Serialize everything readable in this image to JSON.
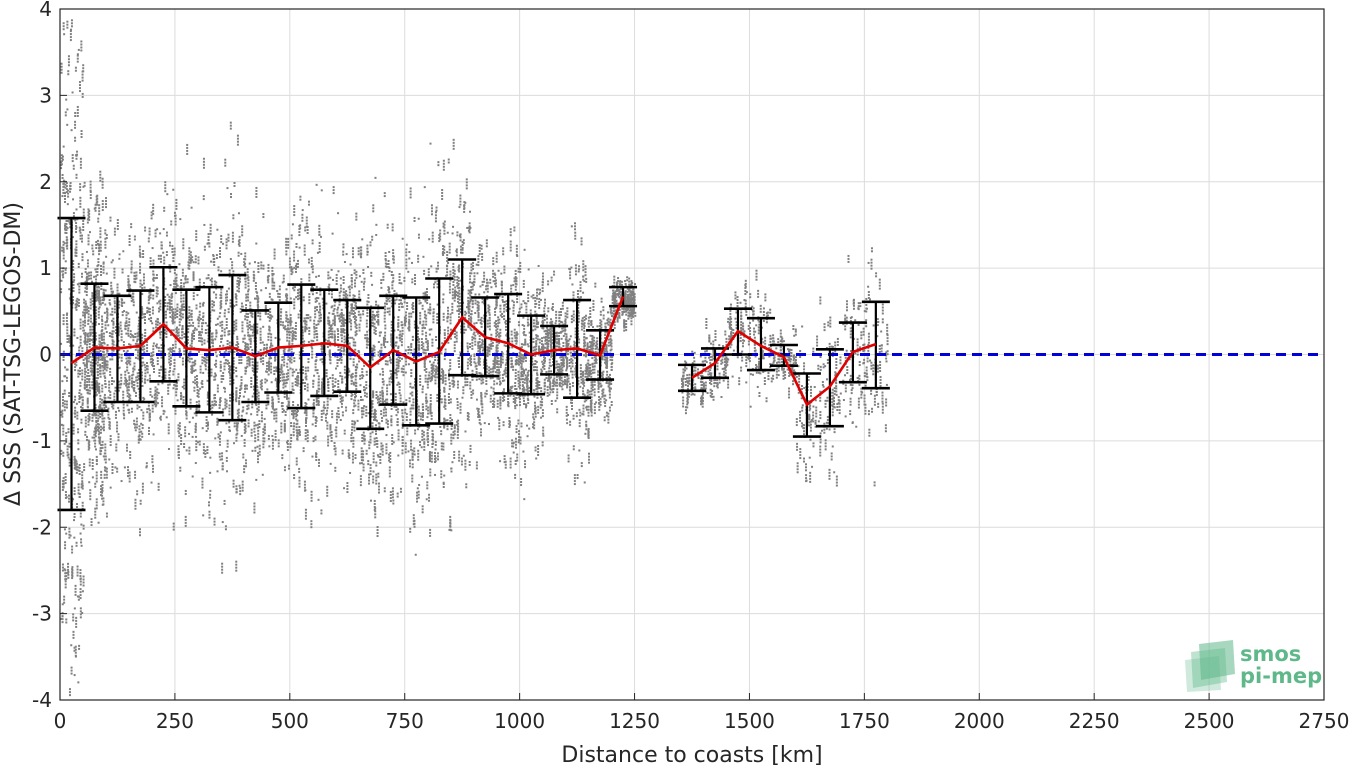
{
  "chart_data": {
    "type": "scatter",
    "xlabel": "Distance to coasts [km]",
    "ylabel": "Δ SSS (SAT-TSG-LEGOS-DM)",
    "xlim": [
      0,
      2750
    ],
    "ylim": [
      -4,
      4
    ],
    "xticks": [
      0,
      250,
      500,
      750,
      1000,
      1250,
      1500,
      1750,
      2000,
      2250,
      2500,
      2750
    ],
    "yticks": [
      -4,
      -3,
      -2,
      -1,
      0,
      1,
      2,
      3,
      4
    ],
    "grid": true,
    "zero_line": {
      "y": 0,
      "color": "#0000dd",
      "style": "dashed"
    },
    "mean_series": {
      "color": "#e00000",
      "segments": [
        [
          [
            25,
            -0.1
          ],
          [
            75,
            0.08
          ],
          [
            125,
            0.07
          ],
          [
            175,
            0.1
          ],
          [
            225,
            0.35
          ],
          [
            275,
            0.07
          ],
          [
            325,
            0.05
          ],
          [
            375,
            0.08
          ],
          [
            425,
            -0.02
          ],
          [
            475,
            0.08
          ],
          [
            525,
            0.1
          ],
          [
            575,
            0.13
          ],
          [
            625,
            0.1
          ],
          [
            675,
            -0.15
          ],
          [
            725,
            0.05
          ],
          [
            775,
            -0.08
          ],
          [
            825,
            0.03
          ],
          [
            875,
            0.43
          ],
          [
            925,
            0.2
          ],
          [
            975,
            0.13
          ],
          [
            1025,
            0.0
          ],
          [
            1075,
            0.05
          ],
          [
            1125,
            0.07
          ],
          [
            1175,
            -0.01
          ],
          [
            1225,
            0.67
          ]
        ],
        [
          [
            1375,
            -0.27
          ],
          [
            1425,
            -0.1
          ],
          [
            1475,
            0.27
          ],
          [
            1525,
            0.1
          ],
          [
            1575,
            -0.03
          ],
          [
            1625,
            -0.58
          ],
          [
            1675,
            -0.37
          ],
          [
            1725,
            0.03
          ],
          [
            1775,
            0.12
          ]
        ]
      ]
    },
    "error_bars": [
      {
        "x": 25,
        "low": -1.8,
        "high": 1.58
      },
      {
        "x": 75,
        "low": -0.65,
        "high": 0.82
      },
      {
        "x": 125,
        "low": -0.55,
        "high": 0.68
      },
      {
        "x": 175,
        "low": -0.55,
        "high": 0.74
      },
      {
        "x": 225,
        "low": -0.31,
        "high": 1.01
      },
      {
        "x": 275,
        "low": -0.6,
        "high": 0.75
      },
      {
        "x": 325,
        "low": -0.67,
        "high": 0.78
      },
      {
        "x": 375,
        "low": -0.76,
        "high": 0.92
      },
      {
        "x": 425,
        "low": -0.55,
        "high": 0.51
      },
      {
        "x": 475,
        "low": -0.44,
        "high": 0.6
      },
      {
        "x": 525,
        "low": -0.62,
        "high": 0.81
      },
      {
        "x": 575,
        "low": -0.48,
        "high": 0.75
      },
      {
        "x": 625,
        "low": -0.43,
        "high": 0.63
      },
      {
        "x": 675,
        "low": -0.86,
        "high": 0.54
      },
      {
        "x": 725,
        "low": -0.58,
        "high": 0.68
      },
      {
        "x": 775,
        "low": -0.82,
        "high": 0.66
      },
      {
        "x": 825,
        "low": -0.8,
        "high": 0.88
      },
      {
        "x": 875,
        "low": -0.24,
        "high": 1.1
      },
      {
        "x": 925,
        "low": -0.25,
        "high": 0.66
      },
      {
        "x": 975,
        "low": -0.45,
        "high": 0.7
      },
      {
        "x": 1025,
        "low": -0.46,
        "high": 0.45
      },
      {
        "x": 1075,
        "low": -0.23,
        "high": 0.33
      },
      {
        "x": 1125,
        "low": -0.5,
        "high": 0.63
      },
      {
        "x": 1175,
        "low": -0.29,
        "high": 0.28
      },
      {
        "x": 1225,
        "low": 0.56,
        "high": 0.78
      },
      {
        "x": 1375,
        "low": -0.42,
        "high": -0.12
      },
      {
        "x": 1425,
        "low": -0.27,
        "high": 0.07
      },
      {
        "x": 1475,
        "low": 0.0,
        "high": 0.53
      },
      {
        "x": 1525,
        "low": -0.18,
        "high": 0.42
      },
      {
        "x": 1575,
        "low": -0.13,
        "high": 0.11
      },
      {
        "x": 1625,
        "low": -0.95,
        "high": -0.22
      },
      {
        "x": 1675,
        "low": -0.83,
        "high": 0.06
      },
      {
        "x": 1725,
        "low": -0.32,
        "high": 0.37
      },
      {
        "x": 1775,
        "low": -0.39,
        "high": 0.61
      }
    ],
    "scatter_color": "#808080"
  },
  "logo": {
    "line1": "smos",
    "line2": "pi-mep",
    "color": "#5fb88a"
  }
}
